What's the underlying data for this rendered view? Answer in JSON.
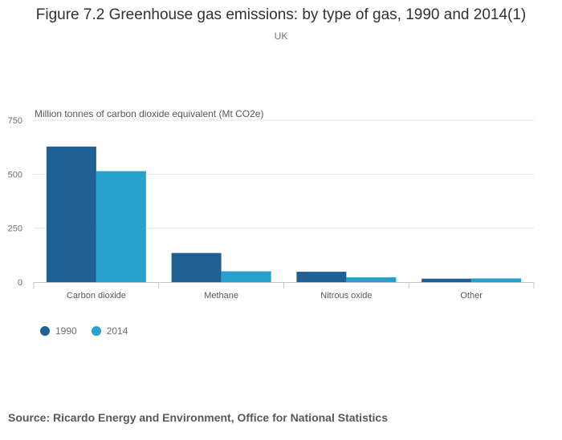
{
  "header": {
    "title": "Figure 7.2 Greenhouse gas emissions: by type of gas, 1990 and 2014(1)",
    "subtitle": "UK"
  },
  "footer": {
    "source": "Source: Ricardo Energy and Environment, Office for National Statistics"
  },
  "chart_data": {
    "type": "bar",
    "title": "Figure 7.2 Greenhouse gas emissions: by type of gas, 1990 and 2014(1)",
    "subtitle": "UK",
    "ylabel": "Million tonnes of carbon dioxide equivalent (Mt CO2e)",
    "xlabel": "",
    "ylim": [
      0,
      750
    ],
    "yticks": [
      0,
      250,
      500,
      750
    ],
    "grid": true,
    "legend_position": "bottom-left",
    "categories": [
      "Carbon dioxide",
      "Methane",
      "Nitrous oxide",
      "Other"
    ],
    "series": [
      {
        "name": "1990",
        "color": "#206095",
        "values": [
          628,
          135,
          48,
          16
        ]
      },
      {
        "name": "2014",
        "color": "#27a0cc",
        "values": [
          514,
          50,
          22,
          17
        ]
      }
    ]
  }
}
